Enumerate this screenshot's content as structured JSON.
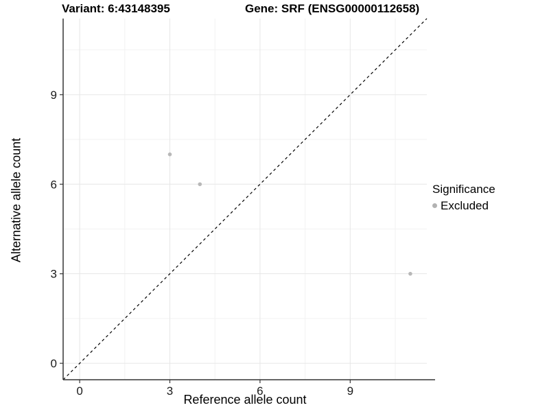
{
  "chart_data": {
    "type": "scatter",
    "title_variant": "Variant: 6:43148395",
    "title_gene": "Gene: SRF (ENSG00000112658)",
    "xlabel": "Reference allele count",
    "ylabel": "Alternative allele count",
    "xlim": [
      -0.55,
      11.55
    ],
    "ylim": [
      -0.55,
      11.55
    ],
    "x_ticks": [
      0,
      3,
      6,
      9
    ],
    "y_ticks": [
      0,
      3,
      6,
      9
    ],
    "minor_gridlines": [
      1.5,
      4.5,
      7.5,
      10.5
    ],
    "grid": true,
    "identity_line": {
      "type": "dashed",
      "color": "#000000",
      "equation": "y = x"
    },
    "series": [
      {
        "name": "Excluded",
        "color": "#b8b8b8",
        "points": [
          {
            "x": 3,
            "y": 7
          },
          {
            "x": 4,
            "y": 6
          },
          {
            "x": 11,
            "y": 3
          }
        ]
      }
    ],
    "legend": {
      "title": "Significance",
      "position": "right",
      "items": [
        {
          "label": "Excluded",
          "color": "#b2b2b2"
        }
      ]
    },
    "style": {
      "background": "#ffffff",
      "major_grid_color": "#e6e6e6",
      "minor_grid_color": "#f2f2f2",
      "axis_line_color": "#333333",
      "tick_color": "#333333",
      "tick_label_color": "#1a1a1a",
      "point_color": "#b8b8b8"
    }
  }
}
